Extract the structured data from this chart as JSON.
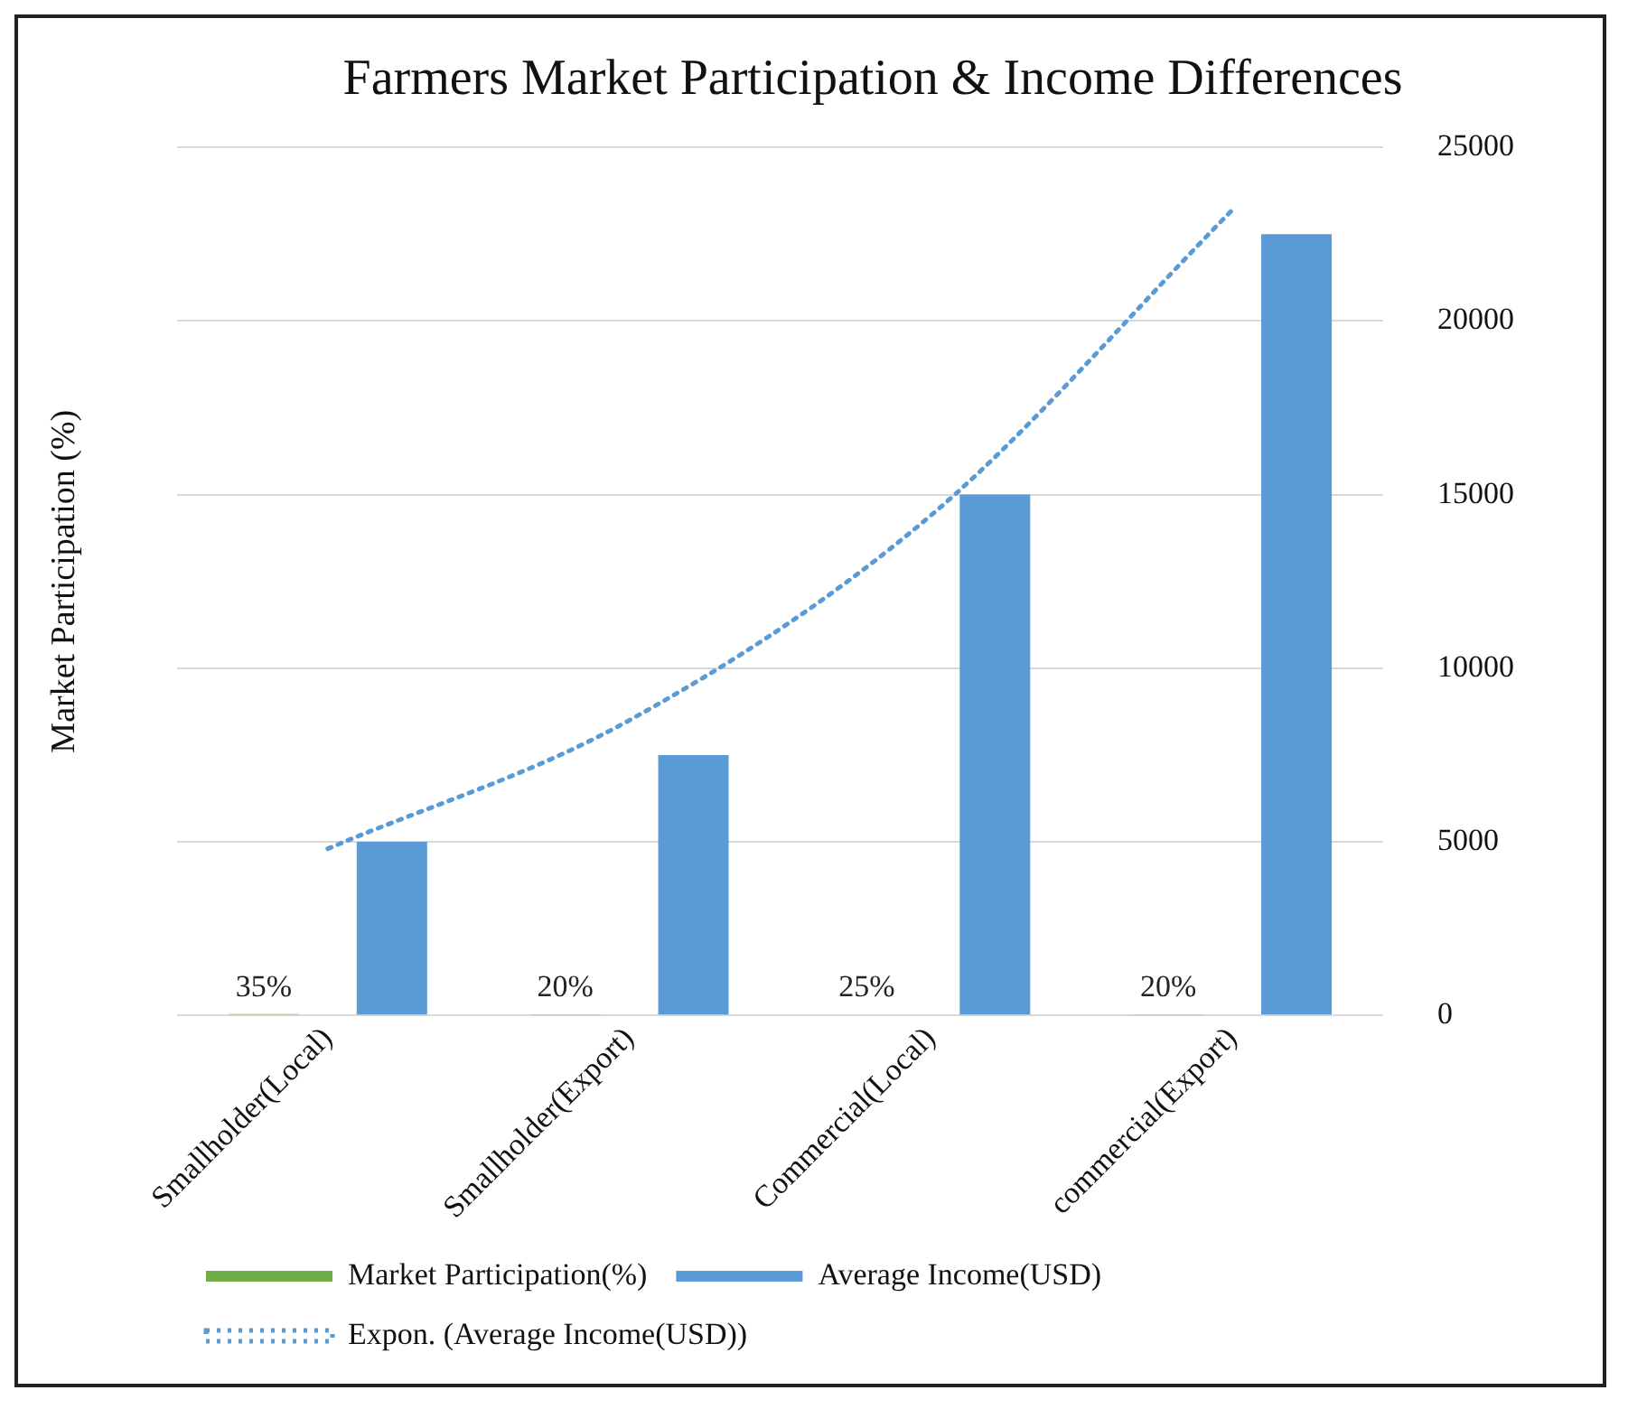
{
  "chart_data": {
    "type": "bar",
    "title": "Farmers Market Participation & Income Differences",
    "ylabel": "Market Participation (%)",
    "categories": [
      "Smallholder(Local)",
      "Smallholder(Export)",
      "Commercial(Local)",
      "commercial(Export)"
    ],
    "series": [
      {
        "name": "Market Participation(%)",
        "color": "#70ad47",
        "values": [
          35,
          20,
          25,
          20
        ],
        "value_labels": [
          "35%",
          "20%",
          "25%",
          "20%"
        ]
      },
      {
        "name": "Average Income(USD)",
        "color": "#5b9bd5",
        "values": [
          5000,
          7500,
          15000,
          22500
        ]
      },
      {
        "name": "Expon. (Average Income(USD))",
        "type": "line",
        "color": "#5b9bd5",
        "line_style": "dotted",
        "marker": "none",
        "x": [
          "Smallholder(Local)",
          "Smallholder(Export)",
          "Commercial(Local)",
          "commercial(Export)"
        ],
        "values": [
          4800,
          8500,
          14400,
          23200
        ]
      }
    ],
    "ylim": [
      0,
      25000
    ],
    "yticks": [
      0,
      5000,
      10000,
      15000,
      20000,
      25000
    ],
    "grid": "y",
    "legend": "bottom"
  }
}
